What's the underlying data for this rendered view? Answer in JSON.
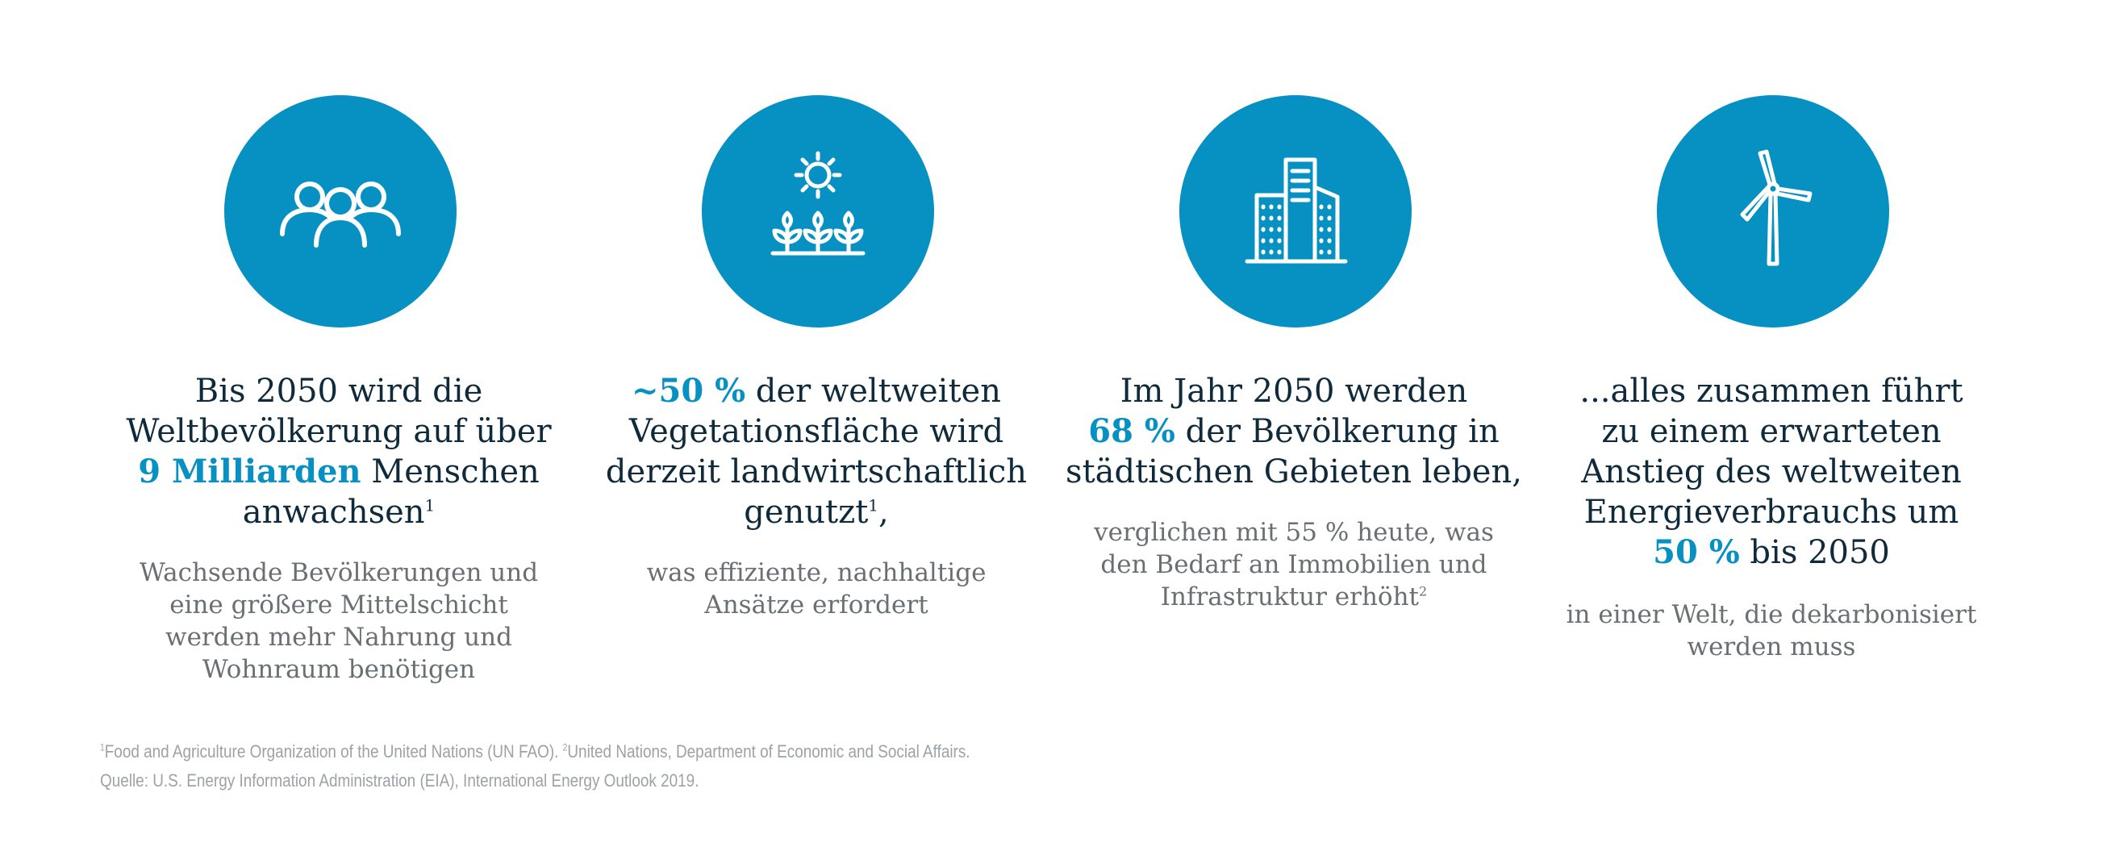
{
  "colors": {
    "accent": "#0790c2",
    "headline": "#0f2a3a",
    "body": "#6a6f73",
    "footnote": "#9ca2a6",
    "icon_stroke": "#ffffff"
  },
  "items": [
    {
      "icon": "people-group-icon",
      "headline": {
        "l1": "Bis 2050 wird die",
        "l2": "Weltbevölkerung auf über",
        "l3_highlight": "9 Milliarden",
        "l3_rest": " Menschen",
        "l4": "anwachsen",
        "l4_sup": "1"
      },
      "sub": {
        "l1": "Wachsende Bevölkerungen und",
        "l2": "eine größere Mittelschicht",
        "l3": "werden mehr Nahrung und",
        "l4": "Wohnraum benötigen"
      }
    },
    {
      "icon": "sun-and-plants-icon",
      "headline": {
        "l1_highlight": "~50 %",
        "l1_rest": " der weltweiten",
        "l2": "Vegetationsfläche wird",
        "l3": "derzeit landwirtschaftlich",
        "l4": "genutzt",
        "l4_sup": "1",
        "l4_after": ","
      },
      "sub": {
        "l1": "was effiziente, nachhaltige",
        "l2": "Ansätze erfordert"
      }
    },
    {
      "icon": "city-buildings-icon",
      "headline": {
        "l1": "Im Jahr 2050 werden",
        "l2_highlight": "68 %",
        "l2_rest": " der Bevölkerung in",
        "l3": "städtischen Gebieten leben,"
      },
      "sub": {
        "l1": "verglichen mit 55 % heute, was",
        "l2": "den Bedarf an Immobilien und",
        "l3": "Infrastruktur erhöht",
        "l3_sup": "2"
      }
    },
    {
      "icon": "wind-turbine-icon",
      "headline": {
        "l1": "...alles zusammen führt",
        "l2": "zu einem erwarteten",
        "l3": "Anstieg des weltweiten",
        "l4": "Energieverbrauchs um",
        "l5_highlight": "50 %",
        "l5_rest": " bis 2050"
      },
      "sub": {
        "l1": "in einer Welt, die dekarbonisiert",
        "l2": "werden muss"
      }
    }
  ],
  "footnotes": {
    "sup1": "1",
    "line1_a": "Food and Agriculture Organization of the United Nations (UN FAO). ",
    "sup2": "2",
    "line1_b": "United Nations, Department of Economic and Social Affairs.",
    "line2": "Quelle: U.S. Energy Information Administration (EIA), International Energy Outlook 2019."
  }
}
